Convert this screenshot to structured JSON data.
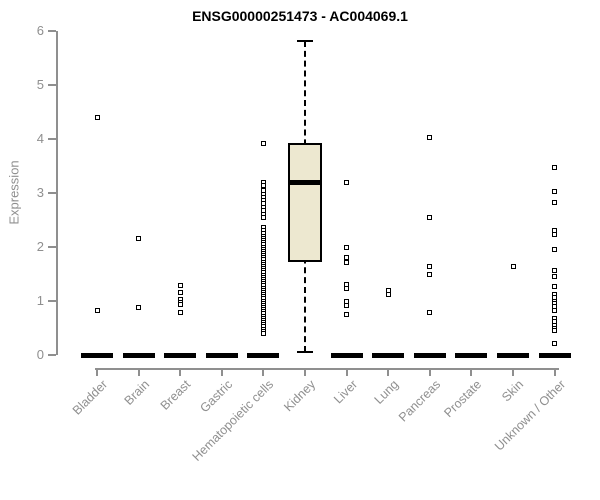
{
  "title": "ENSG00000251473 - AC004069.1",
  "colors": {
    "box_fill": "#EDE8D0",
    "box_stroke": "#000000",
    "axis_gray": "#8f8f8f",
    "title_color": "#000000",
    "background": "#ffffff"
  },
  "chart_data": {
    "type": "boxplot",
    "title": "ENSG00000251473 - AC004069.1",
    "xlabel": "",
    "ylabel": "Expression",
    "ylim": [
      0,
      6
    ],
    "yticks": [
      0,
      1,
      2,
      3,
      4,
      5,
      6
    ],
    "grid": false,
    "legend": "none",
    "categories": [
      "Bladder",
      "Brain",
      "Breast",
      "Gastric",
      "Hematopoietic cells",
      "Kidney",
      "Liver",
      "Lung",
      "Pancreas",
      "Prostate",
      "Skin",
      "Unknown / Other"
    ],
    "boxes": [
      {
        "category": "Bladder",
        "whisker_low": 0,
        "q1": 0,
        "median": 0,
        "q3": 0,
        "whisker_high": 0,
        "outliers": [
          4.4,
          0.82
        ]
      },
      {
        "category": "Brain",
        "whisker_low": 0,
        "q1": 0,
        "median": 0,
        "q3": 0,
        "whisker_high": 0,
        "outliers": [
          2.15,
          0.88
        ]
      },
      {
        "category": "Breast",
        "whisker_low": 0,
        "q1": 0,
        "median": 0,
        "q3": 0,
        "whisker_high": 0,
        "outliers": [
          1.28,
          1.15,
          1.02,
          0.97,
          0.93,
          0.78
        ]
      },
      {
        "category": "Gastric",
        "whisker_low": 0,
        "q1": 0,
        "median": 0,
        "q3": 0,
        "whisker_high": 0,
        "outliers": []
      },
      {
        "category": "Hematopoietic cells",
        "whisker_low": 0,
        "q1": 0,
        "median": 0,
        "q3": 0,
        "whisker_high": 0,
        "outliers": [
          3.92,
          3.2,
          3.14,
          3.04,
          2.98,
          2.92,
          2.86,
          2.8,
          2.74,
          2.68,
          2.6,
          2.55,
          2.37,
          2.3,
          2.25,
          2.2,
          2.16,
          2.12,
          2.08,
          2.04,
          2.0,
          1.96,
          1.92,
          1.88,
          1.84,
          1.8,
          1.76,
          1.72,
          1.68,
          1.64,
          1.6,
          1.56,
          1.52,
          1.48,
          1.44,
          1.4,
          1.36,
          1.32,
          1.28,
          1.24,
          1.2,
          1.16,
          1.12,
          1.08,
          1.04,
          1.0,
          0.96,
          0.92,
          0.88,
          0.84,
          0.8,
          0.76,
          0.72,
          0.68,
          0.64,
          0.6,
          0.56,
          0.52,
          0.48,
          0.44,
          0.4
        ]
      },
      {
        "category": "Kidney",
        "whisker_low": 0.05,
        "q1": 1.72,
        "median": 3.2,
        "q3": 3.93,
        "whisker_high": 5.81,
        "outliers": []
      },
      {
        "category": "Liver",
        "whisker_low": 0,
        "q1": 0,
        "median": 0,
        "q3": 0,
        "whisker_high": 0,
        "outliers": [
          3.2,
          2.0,
          1.8,
          1.72,
          1.3,
          1.24,
          1.0,
          0.92,
          0.75
        ]
      },
      {
        "category": "Lung",
        "whisker_low": 0,
        "q1": 0,
        "median": 0,
        "q3": 0,
        "whisker_high": 0,
        "outliers": [
          1.2,
          1.12
        ]
      },
      {
        "category": "Pancreas",
        "whisker_low": 0,
        "q1": 0,
        "median": 0,
        "q3": 0,
        "whisker_high": 0,
        "outliers": [
          4.02,
          2.55,
          1.63,
          1.5,
          0.78
        ]
      },
      {
        "category": "Prostate",
        "whisker_low": 0,
        "q1": 0,
        "median": 0,
        "q3": 0,
        "whisker_high": 0,
        "outliers": []
      },
      {
        "category": "Skin",
        "whisker_low": 0,
        "q1": 0,
        "median": 0,
        "q3": 0,
        "whisker_high": 0,
        "outliers": [
          1.63
        ]
      },
      {
        "category": "Unknown / Other",
        "whisker_low": 0,
        "q1": 0,
        "median": 0,
        "q3": 0,
        "whisker_high": 0,
        "outliers": [
          3.47,
          3.02,
          2.83,
          2.3,
          2.24,
          1.96,
          1.57,
          1.46,
          1.26,
          1.12,
          1.06,
          1.0,
          0.95,
          0.9,
          0.83,
          0.68,
          0.62,
          0.55,
          0.5,
          0.45,
          0.22
        ]
      }
    ]
  }
}
